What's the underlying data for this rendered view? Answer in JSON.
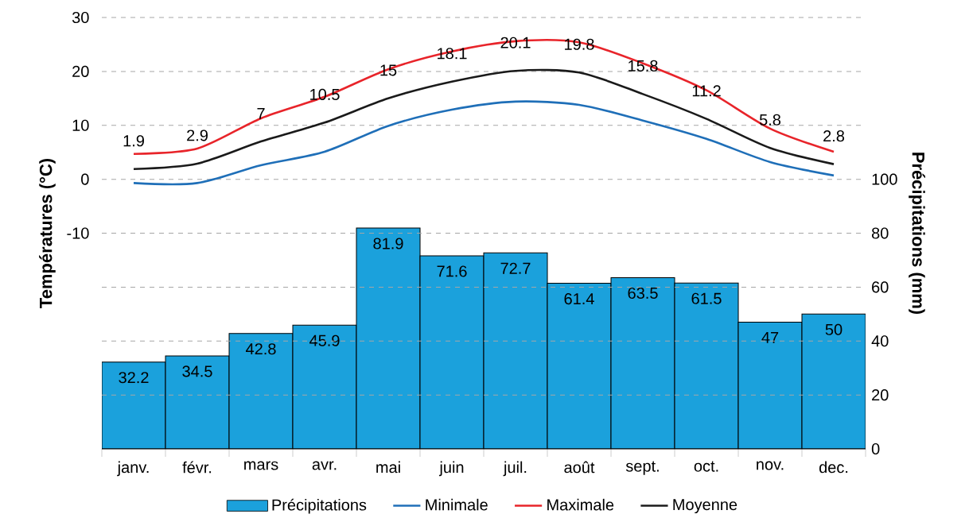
{
  "chart_data": {
    "type": "line",
    "ylabel": "Températures (°C)",
    "y2label": "Précipitations (mm)",
    "categories": [
      "janv.",
      "févr.",
      "mars",
      "avr.",
      "mai",
      "juin",
      "juil.",
      "août",
      "sept.",
      "oct.",
      "nov.",
      "dec."
    ],
    "series": [
      {
        "name": "Précipitations",
        "type": "bar",
        "axis": "y2",
        "color": "#1ba1dc",
        "values": [
          32.2,
          34.5,
          42.8,
          45.9,
          81.9,
          71.6,
          72.7,
          61.4,
          63.5,
          61.5,
          47,
          50
        ],
        "value_labels": [
          "32.2",
          "34.5",
          "42.8",
          "45.9",
          "81.9",
          "71.6",
          "72.7",
          "61.4",
          "63.5",
          "61.5",
          "47",
          "50"
        ]
      },
      {
        "name": "Minimale",
        "color": "#1f6fb8",
        "values": [
          -0.7,
          -0.7,
          2.6,
          5.1,
          9.9,
          12.9,
          14.4,
          13.8,
          10.9,
          7.5,
          3.2,
          0.7
        ]
      },
      {
        "name": "Maximale",
        "color": "#e8242a",
        "values": [
          4.7,
          5.7,
          11.3,
          15.3,
          20.4,
          23.7,
          25.6,
          25.4,
          21.5,
          16.5,
          9.4,
          5.1
        ]
      },
      {
        "name": "Moyenne",
        "color": "#1a1a1a",
        "values": [
          1.9,
          2.9,
          7,
          10.5,
          15,
          18.1,
          20.1,
          19.8,
          15.8,
          11.2,
          5.8,
          2.8
        ],
        "value_labels": [
          "1.9",
          "2.9",
          "7",
          "10.5",
          "15",
          "18.1",
          "20.1",
          "19.8",
          "15.8",
          "11.2",
          "5.8",
          "2.8"
        ]
      }
    ],
    "ylim": [
      -50,
      30
    ],
    "yticks": [
      {
        "value": -40,
        "label": null
      },
      {
        "value": -30,
        "label": null
      },
      {
        "value": -20,
        "label": null
      },
      -10,
      0,
      10,
      20,
      30
    ],
    "y2lim": [
      0,
      160
    ],
    "y2ticks": [
      0,
      20,
      40,
      60,
      80,
      100
    ],
    "grid": "y",
    "legend": "bottom"
  }
}
